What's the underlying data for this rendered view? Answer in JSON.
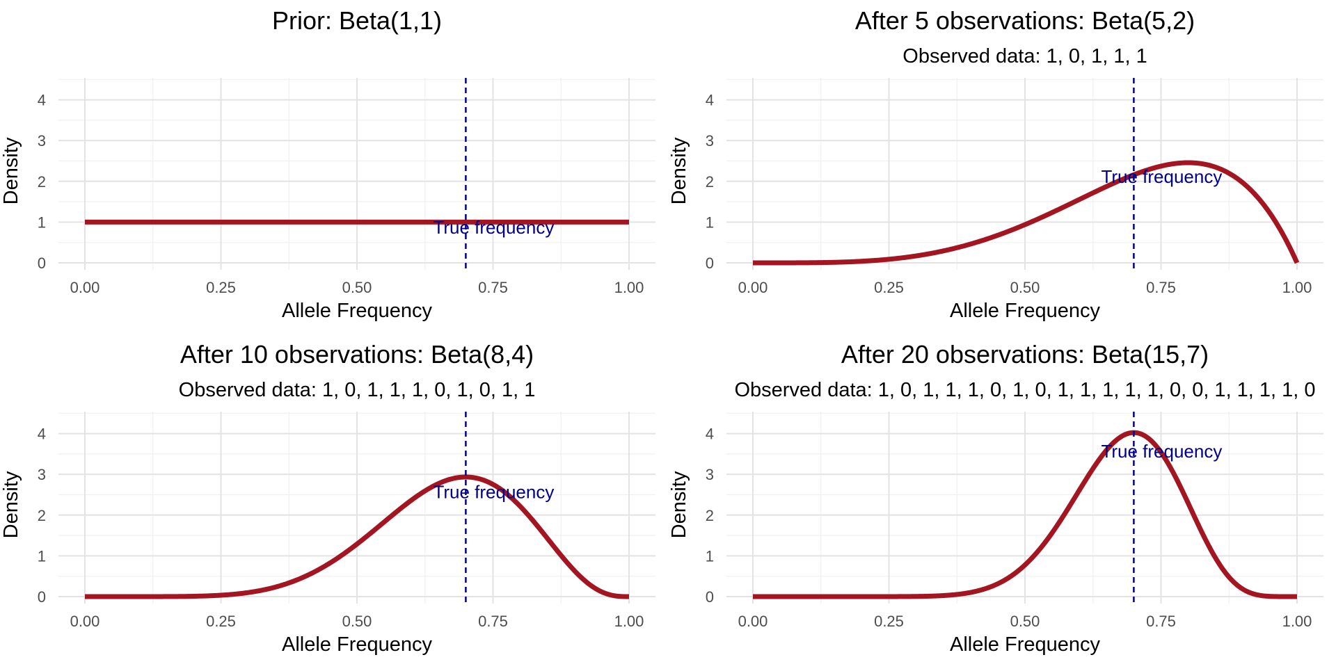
{
  "chart_data": [
    {
      "type": "line",
      "title": "Prior: Beta(1,1)",
      "subtitle": "",
      "xlabel": "Allele Frequency",
      "ylabel": "Density",
      "xlim": [
        0,
        1
      ],
      "ylim": [
        0,
        4.5
      ],
      "x_ticks": [
        "0.00",
        "0.25",
        "0.50",
        "0.75",
        "1.00"
      ],
      "y_ticks": [
        "0",
        "1",
        "2",
        "3",
        "4"
      ],
      "grid": true,
      "line_color": "#a31621",
      "beta": {
        "a": 1,
        "b": 1
      },
      "true_frequency": {
        "x": 0.7,
        "label": "True frequency",
        "label_y": 0.85,
        "color": "#00008b"
      }
    },
    {
      "type": "line",
      "title": "After 5 observations: Beta(5,2)",
      "subtitle": "Observed data: 1, 0, 1, 1, 1",
      "xlabel": "Allele Frequency",
      "ylabel": "Density",
      "xlim": [
        0,
        1
      ],
      "ylim": [
        0,
        4.5
      ],
      "x_ticks": [
        "0.00",
        "0.25",
        "0.50",
        "0.75",
        "1.00"
      ],
      "y_ticks": [
        "0",
        "1",
        "2",
        "3",
        "4"
      ],
      "grid": true,
      "line_color": "#a31621",
      "beta": {
        "a": 5,
        "b": 2
      },
      "true_frequency": {
        "x": 0.7,
        "label": "True frequency",
        "label_y": 2.1,
        "color": "#00008b"
      }
    },
    {
      "type": "line",
      "title": "After 10 observations: Beta(8,4)",
      "subtitle": "Observed data: 1, 0, 1, 1, 1, 0, 1, 0, 1, 1",
      "xlabel": "Allele Frequency",
      "ylabel": "Density",
      "xlim": [
        0,
        1
      ],
      "ylim": [
        0,
        4.5
      ],
      "x_ticks": [
        "0.00",
        "0.25",
        "0.50",
        "0.75",
        "1.00"
      ],
      "y_ticks": [
        "0",
        "1",
        "2",
        "3",
        "4"
      ],
      "grid": true,
      "line_color": "#a31621",
      "beta": {
        "a": 8,
        "b": 4
      },
      "true_frequency": {
        "x": 0.7,
        "label": "True frequency",
        "label_y": 2.55,
        "color": "#00008b"
      }
    },
    {
      "type": "line",
      "title": "After 20 observations: Beta(15,7)",
      "subtitle": "Observed data: 1, 0, 1, 1, 1, 0, 1, 0, 1, 1, 1, 1, 1, 0, 0, 1, 1, 1, 1, 0",
      "xlabel": "Allele Frequency",
      "ylabel": "Density",
      "xlim": [
        0,
        1
      ],
      "ylim": [
        0,
        4.5
      ],
      "x_ticks": [
        "0.00",
        "0.25",
        "0.50",
        "0.75",
        "1.00"
      ],
      "y_ticks": [
        "0",
        "1",
        "2",
        "3",
        "4"
      ],
      "grid": true,
      "line_color": "#a31621",
      "beta": {
        "a": 15,
        "b": 7
      },
      "true_frequency": {
        "x": 0.7,
        "label": "True frequency",
        "label_y": 3.55,
        "color": "#00008b"
      }
    }
  ]
}
